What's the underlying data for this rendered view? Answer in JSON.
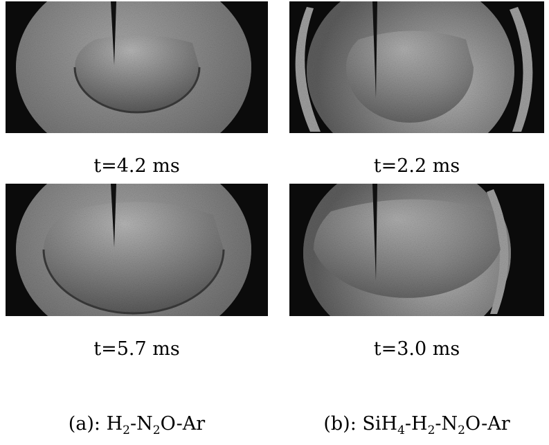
{
  "panels": {
    "a1": {
      "time_label": "t=4.2 ms"
    },
    "b1": {
      "time_label": "t=2.2 ms"
    },
    "a2": {
      "time_label": "t=5.7 ms"
    },
    "b2": {
      "time_label": "t=3.0 ms"
    }
  },
  "captions": {
    "a": {
      "prefix": "(a): ",
      "s1": "H",
      "n1": "2",
      "s2": "-N",
      "n2": "2",
      "s3": "O-Ar"
    },
    "b": {
      "prefix": "(b): ",
      "s0": "SiH",
      "n0": "4",
      "s1": "-H",
      "n1": "2",
      "s2": "-N",
      "n2": "2",
      "s3": "O-Ar"
    }
  },
  "colors": {
    "frame_background": "#0b0b0b",
    "disc_fill": "#8c8c8c",
    "flame_fill": "#6e6e6e",
    "ring_fill": "#9a9a9a"
  }
}
